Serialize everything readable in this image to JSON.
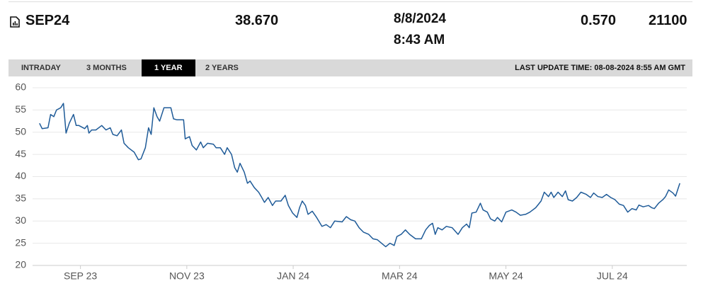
{
  "header": {
    "symbol": "SEP24",
    "price": "38.670",
    "date": "8/8/2024",
    "time": "8:43 AM",
    "change": "0.570",
    "volume": "21100"
  },
  "tabs": [
    "INTRADAY",
    "3 MONTHS",
    "1 YEAR",
    "2 YEARS"
  ],
  "active_tab": 2,
  "last_update": "LAST UPDATE TIME: 08-08-2024 8:55 AM GMT",
  "chart_data": {
    "type": "line",
    "x": [
      -0.77,
      -0.72,
      -0.61,
      -0.56,
      -0.5,
      -0.45,
      -0.37,
      -0.32,
      -0.27,
      -0.21,
      -0.13,
      -0.08,
      -0.03,
      0.08,
      0.13,
      0.16,
      0.21,
      0.29,
      0.4,
      0.48,
      0.56,
      0.61,
      0.69,
      0.77,
      0.82,
      0.9,
      1.01,
      1.09,
      1.14,
      1.22,
      1.28,
      1.33,
      1.38,
      1.44,
      1.49,
      1.57,
      1.7,
      1.75,
      1.81,
      1.94,
      1.97,
      2.05,
      2.1,
      2.18,
      2.26,
      2.31,
      2.39,
      2.5,
      2.55,
      2.63,
      2.71,
      2.76,
      2.84,
      2.9,
      2.95,
      3.0,
      3.08,
      3.14,
      3.19,
      3.27,
      3.35,
      3.4,
      3.46,
      3.53,
      3.61,
      3.67,
      3.77,
      3.85,
      3.91,
      3.99,
      4.07,
      4.12,
      4.17,
      4.23,
      4.28,
      4.36,
      4.44,
      4.54,
      4.62,
      4.7,
      4.78,
      4.92,
      5.0,
      5.08,
      5.16,
      5.24,
      5.32,
      5.42,
      5.5,
      5.58,
      5.66,
      5.74,
      5.82,
      5.9,
      5.95,
      6.03,
      6.11,
      6.19,
      6.3,
      6.41,
      6.49,
      6.56,
      6.62,
      6.67,
      6.72,
      6.8,
      6.88,
      6.99,
      7.1,
      7.18,
      7.26,
      7.31,
      7.36,
      7.44,
      7.52,
      7.57,
      7.65,
      7.71,
      7.79,
      7.84,
      7.92,
      8.0,
      8.11,
      8.19,
      8.27,
      8.37,
      8.45,
      8.56,
      8.66,
      8.72,
      8.8,
      8.85,
      8.9,
      8.98,
      9.06,
      9.12,
      9.17,
      9.25,
      9.33,
      9.41,
      9.51,
      9.59,
      9.65,
      9.73,
      9.81,
      9.89,
      9.97,
      10.05,
      10.13,
      10.21,
      10.29,
      10.37,
      10.45,
      10.5,
      10.58,
      10.68,
      10.74,
      10.79,
      10.87,
      10.95,
      11.0,
      11.06,
      11.14,
      11.19,
      11.27
    ],
    "series": [
      {
        "color": "#1f5b98",
        "values": [
          52,
          50.8,
          51,
          54,
          53.5,
          55,
          55.5,
          56.5,
          49.8,
          52,
          54,
          51.5,
          51.5,
          50.8,
          51.5,
          49.8,
          50.5,
          50.5,
          51.5,
          50.5,
          51,
          49.5,
          49.2,
          50.5,
          47.5,
          46.5,
          45.5,
          43.8,
          44,
          46.5,
          51,
          49.5,
          55.5,
          53.5,
          52.5,
          55.5,
          55.5,
          53,
          52.8,
          52.8,
          48.5,
          49,
          47,
          46,
          47.8,
          46.5,
          47.5,
          47.3,
          46.5,
          46.5,
          45,
          46.5,
          45,
          42,
          41,
          43,
          41,
          38.5,
          39,
          37.5,
          36.5,
          35.5,
          34.2,
          35.3,
          33.5,
          34.5,
          34.5,
          35.8,
          33.5,
          31.8,
          30.8,
          33,
          34.5,
          33.5,
          31.5,
          32.2,
          30.8,
          28.8,
          29.2,
          28.5,
          30,
          29.8,
          31,
          30.3,
          30,
          28.5,
          27.5,
          27,
          26,
          25.8,
          25,
          24.2,
          25,
          24.5,
          26.5,
          27,
          28,
          27,
          26,
          26,
          28,
          29,
          29.5,
          27,
          28.5,
          28,
          28.8,
          28.5,
          27,
          28.5,
          29.3,
          28.5,
          31.8,
          32,
          34,
          32.5,
          32,
          30.5,
          30,
          30.8,
          29.8,
          32,
          32.5,
          32,
          31.3,
          31.5,
          32,
          33,
          34.5,
          36.5,
          35.5,
          36.5,
          35.3,
          36.5,
          35.5,
          36.8,
          34.8,
          34.5,
          35.3,
          36.5,
          36,
          35.3,
          36.3,
          35.5,
          35.3,
          36,
          35.3,
          34.8,
          33.8,
          33.5,
          32,
          32.8,
          32.5,
          33.6,
          33.2,
          33.5,
          33,
          32.8,
          34,
          34.8,
          35.5,
          37,
          36.3,
          35.6,
          38.5
        ]
      }
    ],
    "xlim": [
      -0.9,
      11.4
    ],
    "xticks": [
      {
        "value": 0,
        "label": "SEP 23"
      },
      {
        "value": 2,
        "label": "NOV 23"
      },
      {
        "value": 4,
        "label": "JAN 24"
      },
      {
        "value": 6,
        "label": "MAR 24"
      },
      {
        "value": 8,
        "label": "MAY 24"
      },
      {
        "value": 10,
        "label": "JUL 24"
      }
    ],
    "ylim": [
      20,
      60
    ],
    "yticks": [
      20,
      25,
      30,
      35,
      40,
      45,
      50,
      55,
      60
    ],
    "grid": true
  }
}
